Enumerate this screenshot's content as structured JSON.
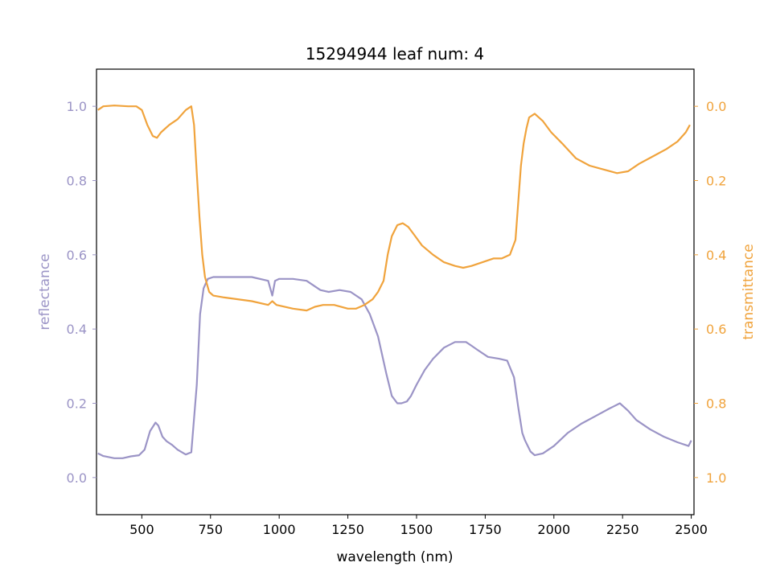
{
  "chart_data": {
    "type": "line",
    "title": "15294944 leaf num: 4",
    "xlabel": "wavelength (nm)",
    "ylabel_left": "reflectance",
    "ylabel_right": "transmittance",
    "xlim": [
      335,
      2510
    ],
    "ylim_left": [
      -0.1,
      1.1
    ],
    "ylim_right": [
      1.1,
      -0.1
    ],
    "x_ticks": [
      500,
      750,
      1000,
      1250,
      1500,
      1750,
      2000,
      2250,
      2500
    ],
    "x_tick_labels": [
      "500",
      "750",
      "1000",
      "1250",
      "1500",
      "1750",
      "2000",
      "2250",
      "2500"
    ],
    "left_ticks": [
      0.0,
      0.2,
      0.4,
      0.6,
      0.8,
      1.0
    ],
    "left_tick_labels": [
      "0.0",
      "0.2",
      "0.4",
      "0.6",
      "0.8",
      "1.0"
    ],
    "right_ticks": [
      0.0,
      0.2,
      0.4,
      0.6,
      0.8,
      1.0
    ],
    "right_tick_labels": [
      "0.0",
      "0.2",
      "0.4",
      "0.6",
      "0.8",
      "1.0"
    ],
    "grid": false,
    "colors": {
      "reflectance": "#9b94c6",
      "transmittance": "#f0a33c",
      "axis": "#000000"
    },
    "series": [
      {
        "axis": "left",
        "color": "#9b94c6",
        "x": [
          340,
          360,
          400,
          430,
          460,
          490,
          510,
          530,
          550,
          560,
          575,
          590,
          610,
          630,
          660,
          680,
          700,
          712,
          725,
          740,
          760,
          800,
          900,
          960,
          975,
          985,
          1000,
          1050,
          1100,
          1150,
          1180,
          1220,
          1260,
          1300,
          1330,
          1360,
          1390,
          1410,
          1430,
          1445,
          1465,
          1480,
          1500,
          1530,
          1560,
          1600,
          1640,
          1680,
          1700,
          1720,
          1760,
          1800,
          1830,
          1855,
          1870,
          1885,
          1895,
          1905,
          1915,
          1930,
          1960,
          2000,
          2050,
          2100,
          2150,
          2200,
          2240,
          2270,
          2300,
          2350,
          2400,
          2450,
          2490,
          2500
        ],
        "values": [
          0.065,
          0.058,
          0.052,
          0.052,
          0.057,
          0.06,
          0.075,
          0.125,
          0.148,
          0.14,
          0.11,
          0.098,
          0.088,
          0.075,
          0.062,
          0.068,
          0.25,
          0.44,
          0.51,
          0.535,
          0.54,
          0.54,
          0.54,
          0.53,
          0.49,
          0.53,
          0.535,
          0.535,
          0.53,
          0.505,
          0.5,
          0.505,
          0.5,
          0.48,
          0.44,
          0.38,
          0.28,
          0.22,
          0.2,
          0.2,
          0.205,
          0.22,
          0.25,
          0.29,
          0.32,
          0.35,
          0.365,
          0.365,
          0.355,
          0.345,
          0.325,
          0.32,
          0.315,
          0.27,
          0.19,
          0.12,
          0.1,
          0.085,
          0.07,
          0.06,
          0.065,
          0.085,
          0.12,
          0.145,
          0.165,
          0.185,
          0.2,
          0.18,
          0.155,
          0.13,
          0.11,
          0.095,
          0.085,
          0.1
        ]
      },
      {
        "axis": "right",
        "color": "#f0a33c",
        "x": [
          340,
          360,
          400,
          450,
          480,
          500,
          520,
          540,
          555,
          570,
          600,
          630,
          660,
          680,
          690,
          700,
          710,
          720,
          730,
          745,
          760,
          800,
          900,
          960,
          975,
          990,
          1050,
          1100,
          1130,
          1160,
          1200,
          1250,
          1280,
          1310,
          1340,
          1360,
          1380,
          1395,
          1410,
          1430,
          1450,
          1470,
          1490,
          1520,
          1560,
          1600,
          1640,
          1670,
          1700,
          1740,
          1780,
          1810,
          1840,
          1860,
          1870,
          1880,
          1890,
          1900,
          1910,
          1930,
          1960,
          1990,
          2030,
          2080,
          2130,
          2180,
          2230,
          2270,
          2310,
          2360,
          2410,
          2450,
          2480,
          2495
        ],
        "values": [
          0.01,
          0.0,
          -0.002,
          0.0,
          0.0,
          0.01,
          0.05,
          0.08,
          0.085,
          0.07,
          0.05,
          0.035,
          0.01,
          0.0,
          0.05,
          0.18,
          0.3,
          0.4,
          0.46,
          0.5,
          0.51,
          0.515,
          0.525,
          0.535,
          0.525,
          0.535,
          0.545,
          0.55,
          0.54,
          0.535,
          0.535,
          0.545,
          0.545,
          0.535,
          0.52,
          0.5,
          0.47,
          0.4,
          0.35,
          0.32,
          0.315,
          0.325,
          0.345,
          0.375,
          0.4,
          0.42,
          0.43,
          0.435,
          0.43,
          0.42,
          0.41,
          0.41,
          0.4,
          0.36,
          0.26,
          0.16,
          0.1,
          0.06,
          0.03,
          0.02,
          0.04,
          0.07,
          0.1,
          0.14,
          0.16,
          0.17,
          0.18,
          0.175,
          0.155,
          0.135,
          0.115,
          0.095,
          0.07,
          0.05
        ]
      }
    ]
  }
}
